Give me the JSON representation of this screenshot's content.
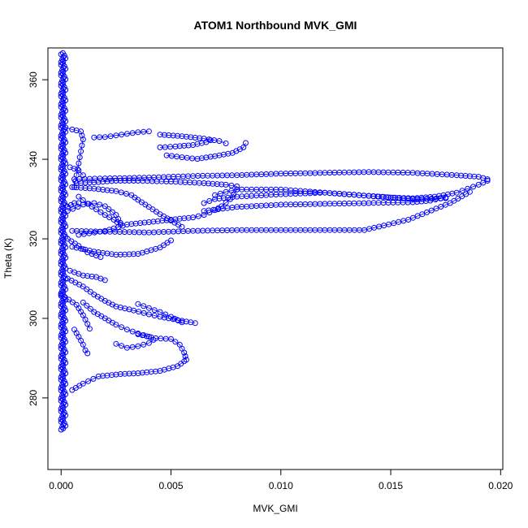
{
  "chart_data": {
    "type": "scatter",
    "title": "ATOM1 Northbound MVK_GMI",
    "xlabel": "MVK_GMI",
    "ylabel": "Theta (K)",
    "xlim": [
      -0.0006,
      0.0201
    ],
    "ylim": [
      262,
      368
    ],
    "x_ticks": [
      0.0,
      0.005,
      0.01,
      0.015,
      0.02
    ],
    "x_tick_labels": [
      "0.000",
      "0.005",
      "0.010",
      "0.015",
      "0.020"
    ],
    "y_ticks": [
      280,
      300,
      320,
      340,
      360
    ],
    "y_tick_labels": [
      "280",
      "300",
      "320",
      "340",
      "360"
    ],
    "grid": false,
    "legend": "none",
    "marker": "open-circle",
    "color": "#0000ff",
    "series": [
      {
        "type": "vertical-band",
        "x": [
          0.0,
          0.0001,
          5e-05,
          0.0002,
          0.0001,
          0.00015,
          0.0,
          8e-05
        ],
        "y_range": [
          272,
          367
        ]
      },
      {
        "type": "line",
        "points": [
          [
            0.0002,
            348
          ],
          [
            0.0005,
            347.5
          ],
          [
            0.0009,
            347
          ],
          [
            0.001,
            345
          ],
          [
            0.0009,
            342
          ],
          [
            0.0008,
            339
          ],
          [
            0.0007,
            336
          ],
          [
            0.0006,
            333
          ]
        ]
      },
      {
        "type": "line",
        "points": [
          [
            0.0015,
            345.5
          ],
          [
            0.002,
            345.6
          ],
          [
            0.0025,
            346
          ],
          [
            0.003,
            346.4
          ],
          [
            0.0035,
            346.8
          ],
          [
            0.004,
            347
          ]
        ]
      },
      {
        "type": "line",
        "points": [
          [
            0.0045,
            346.2
          ],
          [
            0.0055,
            345.8
          ],
          [
            0.0065,
            345.2
          ],
          [
            0.0072,
            344.6
          ],
          [
            0.0075,
            344
          ]
        ]
      },
      {
        "type": "line",
        "points": [
          [
            0.0045,
            343
          ],
          [
            0.0052,
            343.2
          ],
          [
            0.006,
            343.6
          ],
          [
            0.0066,
            344.3
          ],
          [
            0.0068,
            344.8
          ]
        ]
      },
      {
        "type": "line",
        "points": [
          [
            0.0048,
            341
          ],
          [
            0.0055,
            340.5
          ],
          [
            0.0062,
            340.1
          ],
          [
            0.007,
            340.8
          ],
          [
            0.0078,
            341.6
          ],
          [
            0.0083,
            343
          ],
          [
            0.0084,
            344.1
          ]
        ]
      },
      {
        "type": "line",
        "points": [
          [
            0.0006,
            335
          ],
          [
            0.002,
            335.2
          ],
          [
            0.004,
            335.4
          ],
          [
            0.006,
            335.8
          ],
          [
            0.008,
            336
          ],
          [
            0.01,
            336.4
          ],
          [
            0.012,
            336.6
          ],
          [
            0.014,
            336.8
          ],
          [
            0.016,
            336.6
          ],
          [
            0.018,
            336
          ],
          [
            0.019,
            335.6
          ],
          [
            0.0194,
            335
          ]
        ]
      },
      {
        "type": "line",
        "points": [
          [
            0.0194,
            334.6
          ],
          [
            0.019,
            333.6
          ],
          [
            0.0185,
            332.6
          ],
          [
            0.018,
            331.6
          ],
          [
            0.017,
            330.6
          ],
          [
            0.016,
            330.2
          ],
          [
            0.015,
            330.4
          ],
          [
            0.014,
            330.8
          ],
          [
            0.012,
            331.6
          ],
          [
            0.01,
            332.4
          ],
          [
            0.008,
            332.4
          ],
          [
            0.0075,
            331.8
          ],
          [
            0.007,
            331
          ]
        ]
      },
      {
        "type": "line",
        "points": [
          [
            0.0065,
            329
          ],
          [
            0.007,
            330
          ],
          [
            0.008,
            330.6
          ],
          [
            0.01,
            331.2
          ],
          [
            0.012,
            331.6
          ],
          [
            0.014,
            330.8
          ],
          [
            0.016,
            330
          ],
          [
            0.0175,
            330.2
          ]
        ]
      },
      {
        "type": "line",
        "points": [
          [
            0.0175,
            330.4
          ],
          [
            0.0168,
            329.6
          ],
          [
            0.016,
            329.2
          ],
          [
            0.014,
            329
          ],
          [
            0.012,
            328.8
          ],
          [
            0.01,
            328.6
          ],
          [
            0.008,
            328
          ],
          [
            0.0065,
            327
          ]
        ]
      },
      {
        "type": "line",
        "points": [
          [
            0.0005,
            322
          ],
          [
            0.002,
            321.8
          ],
          [
            0.004,
            321.6
          ],
          [
            0.006,
            322
          ],
          [
            0.008,
            322.2
          ],
          [
            0.01,
            322.2
          ],
          [
            0.012,
            322.2
          ],
          [
            0.0138,
            322.2
          ],
          [
            0.0158,
            324.8
          ],
          [
            0.0177,
            329
          ],
          [
            0.0186,
            331.8
          ]
        ]
      },
      {
        "type": "line",
        "points": [
          [
            0.0008,
            321
          ],
          [
            0.002,
            322
          ],
          [
            0.003,
            323.6
          ],
          [
            0.004,
            324.2
          ],
          [
            0.005,
            324.8
          ],
          [
            0.006,
            325.4
          ],
          [
            0.0065,
            326
          ],
          [
            0.007,
            327.2
          ],
          [
            0.0073,
            328.2
          ],
          [
            0.0077,
            330
          ],
          [
            0.008,
            332.4
          ]
        ]
      },
      {
        "type": "line",
        "points": [
          [
            0.0007,
            334
          ],
          [
            0.0015,
            334.2
          ],
          [
            0.0025,
            334.6
          ],
          [
            0.0035,
            334.6
          ],
          [
            0.005,
            334.4
          ],
          [
            0.0065,
            334
          ],
          [
            0.0075,
            333.6
          ],
          [
            0.008,
            333.2
          ]
        ]
      },
      {
        "type": "line",
        "points": [
          [
            0.0005,
            333
          ],
          [
            0.0015,
            332.6
          ],
          [
            0.0025,
            332
          ],
          [
            0.0032,
            331
          ],
          [
            0.0035,
            329.8
          ],
          [
            0.004,
            328
          ],
          [
            0.0045,
            326.2
          ],
          [
            0.005,
            324.6
          ],
          [
            0.0055,
            323
          ]
        ]
      },
      {
        "type": "line",
        "points": [
          [
            0.0005,
            318
          ],
          [
            0.0015,
            316.8
          ],
          [
            0.0025,
            316
          ],
          [
            0.0035,
            316.2
          ],
          [
            0.0045,
            317.8
          ],
          [
            0.005,
            319.6
          ]
        ]
      },
      {
        "type": "line",
        "points": [
          [
            0.0003,
            327
          ],
          [
            0.001,
            328.6
          ],
          [
            0.0015,
            329
          ],
          [
            0.002,
            328.2
          ],
          [
            0.0025,
            326
          ],
          [
            0.0027,
            324
          ]
        ]
      },
      {
        "type": "line",
        "points": [
          [
            0.0008,
            330.6
          ],
          [
            0.0012,
            328.8
          ],
          [
            0.0016,
            327.4
          ],
          [
            0.002,
            326
          ],
          [
            0.0024,
            324.8
          ],
          [
            0.0027,
            323.6
          ]
        ]
      },
      {
        "type": "line",
        "points": [
          [
            0.0003,
            310
          ],
          [
            0.001,
            308
          ],
          [
            0.0015,
            306
          ],
          [
            0.002,
            304.4
          ],
          [
            0.0025,
            303
          ],
          [
            0.0033,
            302
          ],
          [
            0.004,
            301
          ],
          [
            0.0045,
            300.4
          ],
          [
            0.0055,
            299.4
          ],
          [
            0.0061,
            298.8
          ]
        ]
      },
      {
        "type": "line",
        "points": [
          [
            0.001,
            304
          ],
          [
            0.0015,
            301.6
          ],
          [
            0.002,
            300
          ],
          [
            0.0025,
            298.4
          ],
          [
            0.003,
            297.2
          ],
          [
            0.0035,
            296.2
          ],
          [
            0.004,
            295.4
          ]
        ]
      },
      {
        "type": "line",
        "points": [
          [
            0.0035,
            303.6
          ],
          [
            0.004,
            302.6
          ],
          [
            0.0045,
            301.6
          ],
          [
            0.005,
            300.4
          ],
          [
            0.0055,
            299
          ]
        ]
      },
      {
        "type": "line",
        "points": [
          [
            0.0035,
            296
          ],
          [
            0.0043,
            295
          ],
          [
            0.005,
            294.8
          ],
          [
            0.0054,
            293.4
          ],
          [
            0.0056,
            291.4
          ],
          [
            0.0057,
            289.6
          ]
        ]
      },
      {
        "type": "line",
        "points": [
          [
            0.0025,
            293.6
          ],
          [
            0.003,
            292.6
          ],
          [
            0.0035,
            293
          ],
          [
            0.004,
            293.8
          ],
          [
            0.0042,
            294.6
          ]
        ]
      },
      {
        "type": "line",
        "points": [
          [
            0.0,
            306
          ],
          [
            0.0007,
            303.4
          ],
          [
            0.001,
            300.8
          ],
          [
            0.0012,
            298.6
          ],
          [
            0.0013,
            297.4
          ]
        ]
      },
      {
        "type": "line",
        "points": [
          [
            0.0006,
            297.2
          ],
          [
            0.0008,
            295.4
          ],
          [
            0.001,
            293.4
          ],
          [
            0.0011,
            292
          ],
          [
            0.0012,
            291.2
          ]
        ]
      },
      {
        "type": "line",
        "points": [
          [
            0.0005,
            282
          ],
          [
            0.001,
            283.6
          ],
          [
            0.0017,
            285.4
          ],
          [
            0.0027,
            286
          ],
          [
            0.0035,
            286.2
          ],
          [
            0.0045,
            286.8
          ],
          [
            0.0053,
            288
          ],
          [
            0.0056,
            289.2
          ]
        ]
      },
      {
        "type": "line",
        "points": [
          [
            0.0003,
            320
          ],
          [
            0.0008,
            318.2
          ],
          [
            0.0012,
            316.6
          ],
          [
            0.0018,
            315.4
          ]
        ]
      },
      {
        "type": "line",
        "points": [
          [
            0.0004,
            312
          ],
          [
            0.001,
            310.8
          ],
          [
            0.0016,
            310.4
          ],
          [
            0.002,
            309.6
          ]
        ]
      },
      {
        "type": "line",
        "points": [
          [
            0.0003,
            328
          ],
          [
            0.0006,
            329
          ],
          [
            0.0008,
            329
          ]
        ]
      },
      {
        "type": "line",
        "points": [
          [
            0.0004,
            338
          ],
          [
            0.0008,
            337.2
          ],
          [
            0.001,
            336
          ]
        ]
      }
    ]
  }
}
